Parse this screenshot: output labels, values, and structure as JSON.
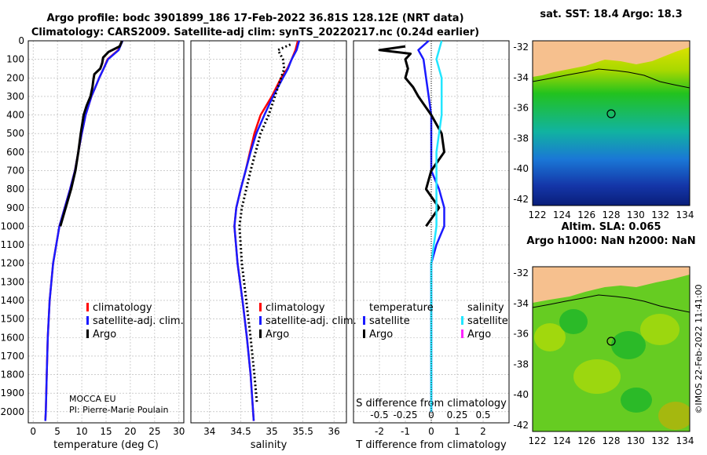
{
  "header": {
    "title_line1": "Argo profile: bodc 3901899_186 17-Feb-2022 36.81S 128.12E (NRT data)",
    "title_line2": "Climatology: CARS2009. Satellite-adj clim: synTS_20220217.nc (0.24d earlier)"
  },
  "credits": {
    "program": "MOCCA EU",
    "pi": "PI: Pierre-Marie Poulain"
  },
  "watermark": "©IMOS 22-Feb-2022 11:41:00",
  "colors": {
    "climatology": "#ff0000",
    "satellite_adj": "#1a1aff",
    "argo": "#000000",
    "t_satellite": "#1a1aff",
    "s_satellite": "#22e6ff",
    "s_argo": "#ff22ff",
    "land": "#f6c08e"
  },
  "panels": {
    "temperature": {
      "xlabel": "temperature (deg C)",
      "xticks": [
        "0",
        "5",
        "10",
        "15",
        "20",
        "25",
        "30"
      ],
      "legend": [
        "climatology",
        "satellite-adj. clim.",
        "Argo"
      ]
    },
    "salinity": {
      "xlabel": "salinity",
      "xticks": [
        "34",
        "34.5",
        "35",
        "35.5",
        "36"
      ],
      "legend": [
        "climatology",
        "satellite-adj. clim.",
        "Argo"
      ]
    },
    "difference": {
      "xlabel": "T difference from climatology",
      "xticks": [
        "-2",
        "-1",
        "0",
        "1",
        "2"
      ],
      "top_label": "S difference from climatology",
      "top_ticks": [
        "-0.5",
        "-0.25",
        "0",
        "0.25",
        "0.5"
      ],
      "legend_t_head": "temperature",
      "legend_s_head": "salinity",
      "legend_t": [
        "satellite",
        "Argo"
      ],
      "legend_s": [
        "satellite",
        "Argo"
      ]
    },
    "depth_ticks": [
      "0",
      "100",
      "200",
      "300",
      "400",
      "500",
      "600",
      "700",
      "800",
      "900",
      "1000",
      "1100",
      "1200",
      "1300",
      "1400",
      "1500",
      "1600",
      "1700",
      "1800",
      "1900",
      "2000"
    ]
  },
  "maps": {
    "sst_title": "sat. SST: 18.4 Argo: 18.3",
    "sla_title_line1": "Altim. SLA: 0.065",
    "sla_title_line2": "Argo h1000: NaN h2000: NaN",
    "lon_ticks": [
      "122",
      "124",
      "126",
      "128",
      "130",
      "132",
      "134"
    ],
    "lat_ticks": [
      "-32",
      "-34",
      "-36",
      "-38",
      "-40",
      "-42"
    ]
  },
  "chart_data": [
    {
      "type": "line",
      "title": "",
      "xlabel": "temperature (deg C)",
      "ylabel": "",
      "xlim": [
        -1,
        31
      ],
      "ylim": [
        2060,
        0
      ],
      "series": [
        {
          "name": "climatology",
          "depth": [
            0,
            50,
            100,
            150,
            200,
            250,
            300,
            400,
            500,
            600,
            700,
            800,
            900,
            1000,
            1200,
            1400,
            1600,
            1800,
            2000,
            2050
          ],
          "values": [
            18.3,
            17.5,
            15.3,
            14.5,
            13.6,
            12.8,
            12.0,
            10.8,
            10.0,
            9.3,
            8.6,
            7.6,
            6.5,
            5.4,
            4.1,
            3.4,
            3.0,
            2.8,
            2.6,
            2.5
          ]
        },
        {
          "name": "satellite-adj. clim.",
          "depth": [
            0,
            50,
            100,
            150,
            200,
            250,
            300,
            400,
            500,
            600,
            700,
            800,
            900,
            1000,
            1200,
            1400,
            1600,
            1800,
            2000,
            2050
          ],
          "values": [
            18.4,
            17.6,
            15.4,
            14.5,
            13.6,
            12.8,
            12.0,
            10.8,
            10.0,
            9.3,
            8.6,
            7.6,
            6.5,
            5.4,
            4.1,
            3.4,
            3.0,
            2.8,
            2.6,
            2.5
          ]
        },
        {
          "name": "Argo",
          "depth": [
            0,
            30,
            60,
            90,
            120,
            150,
            180,
            210,
            250,
            300,
            350,
            400,
            500,
            600,
            700,
            800,
            900,
            1000
          ],
          "values": [
            18.3,
            17.8,
            15.5,
            14.4,
            14.2,
            13.8,
            12.6,
            12.4,
            12.2,
            11.8,
            11.0,
            10.4,
            9.8,
            9.3,
            8.7,
            7.8,
            6.7,
            5.6
          ]
        }
      ]
    },
    {
      "type": "line",
      "title": "",
      "xlabel": "salinity",
      "ylabel": "",
      "xlim": [
        33.7,
        36.2
      ],
      "ylim": [
        2060,
        0
      ],
      "series": [
        {
          "name": "climatology",
          "depth": [
            0,
            50,
            100,
            150,
            200,
            300,
            400,
            500,
            600,
            700,
            800,
            900,
            1000,
            1200,
            1400,
            1600,
            1800,
            2000,
            2050
          ],
          "values": [
            35.42,
            35.38,
            35.32,
            35.25,
            35.15,
            35.0,
            34.82,
            34.72,
            34.65,
            34.58,
            34.5,
            34.43,
            34.4,
            34.45,
            34.53,
            34.6,
            34.66,
            34.7,
            34.71
          ]
        },
        {
          "name": "satellite-adj. clim.",
          "depth": [
            0,
            50,
            100,
            150,
            200,
            300,
            400,
            500,
            600,
            700,
            800,
            900,
            1000,
            1200,
            1400,
            1600,
            1800,
            2000,
            2050
          ],
          "values": [
            35.44,
            35.4,
            35.32,
            35.26,
            35.18,
            35.02,
            34.88,
            34.75,
            34.66,
            34.58,
            34.5,
            34.43,
            34.4,
            34.45,
            34.53,
            34.6,
            34.66,
            34.7,
            34.71
          ]
        },
        {
          "name": "Argo",
          "depth": [
            20,
            50,
            100,
            150,
            200,
            300,
            400,
            500,
            600,
            700,
            800,
            900,
            1000,
            1200,
            1400,
            1600,
            1800,
            1950
          ],
          "values": [
            35.3,
            35.1,
            35.18,
            35.2,
            35.15,
            35.05,
            34.95,
            34.82,
            34.74,
            34.66,
            34.59,
            34.52,
            34.48,
            34.52,
            34.59,
            34.66,
            34.72,
            34.76
          ]
        }
      ]
    },
    {
      "type": "line",
      "title": "",
      "xlabel": "T difference from climatology",
      "ylabel": "",
      "xlim": [
        -3,
        3
      ],
      "ylim": [
        2060,
        0
      ],
      "series": [
        {
          "name": "temperature satellite",
          "depth": [
            0,
            50,
            100,
            200,
            300,
            400,
            500,
            600,
            700,
            800,
            900,
            1000,
            1100,
            1200,
            2000
          ],
          "values": [
            -0.1,
            -0.5,
            -0.3,
            -0.2,
            -0.1,
            0,
            0,
            0,
            0,
            0.3,
            0.5,
            0.5,
            0.2,
            0,
            0
          ]
        },
        {
          "name": "temperature Argo",
          "depth": [
            30,
            50,
            70,
            100,
            150,
            200,
            250,
            300,
            400,
            500,
            600,
            700,
            800,
            900,
            1000
          ],
          "values": [
            -1.0,
            -2.0,
            -0.8,
            -1.0,
            -0.9,
            -1.0,
            -0.7,
            -0.5,
            0,
            0.4,
            0.5,
            0,
            -0.2,
            0.3,
            -0.2
          ]
        },
        {
          "name": "salinity satellite",
          "depth": [
            0,
            100,
            200,
            400,
            600,
            800,
            1000,
            1200,
            1500,
            2000
          ],
          "values": [
            0.1,
            0.05,
            0.1,
            0.1,
            0.05,
            0.05,
            0.05,
            0,
            0,
            0
          ]
        },
        {
          "name": "salinity Argo",
          "depth": [],
          "values": []
        }
      ]
    }
  ]
}
